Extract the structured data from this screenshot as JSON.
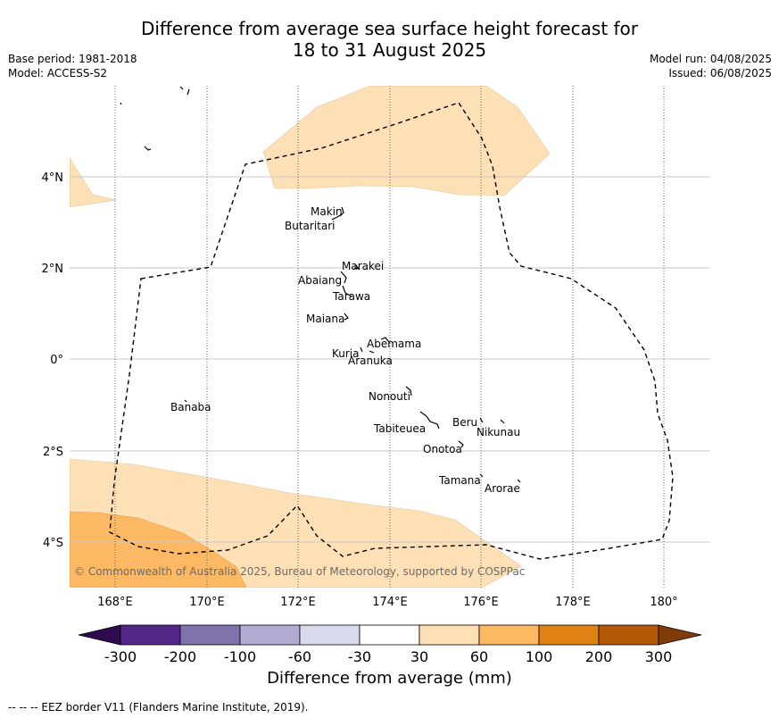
{
  "header": {
    "title_line1": "Difference from average sea surface height forecast for",
    "title_line2": "18 to 31 August 2025",
    "base_period": "Base period: 1981-2018",
    "model": "Model: ACCESS-S2",
    "model_run": "Model run: 04/08/2025",
    "issued": "Issued: 06/08/2025"
  },
  "map": {
    "lon_ticks": [
      "168°E",
      "170°E",
      "172°E",
      "174°E",
      "176°E",
      "178°E",
      "180°"
    ],
    "lat_ticks": [
      "4°N",
      "2°N",
      "0°",
      "2°S",
      "4°S"
    ],
    "places": [
      "Makin",
      "Butaritari",
      "Marakei",
      "Abaiang",
      "Tarawa",
      "Maiana",
      "Abemama",
      "Kuria",
      "Aranuka",
      "Banaba",
      "Nonouti",
      "Tabiteuea",
      "Beru",
      "Nikunau",
      "Onotoa",
      "Tamana",
      "Arorae"
    ],
    "copyright": "© Commonwealth of Australia 2025, Bureau of Meteorology, supported by COSPPac"
  },
  "colorbar": {
    "labels": [
      "-300",
      "-200",
      "-100",
      "-60",
      "-30",
      "30",
      "60",
      "100",
      "200",
      "300"
    ],
    "colors": [
      "#2d0b4e",
      "#542688",
      "#8073ac",
      "#b2abd2",
      "#d8daeb",
      "#ffffff",
      "#fee0b6",
      "#fdb863",
      "#e08214",
      "#b35806",
      "#7f3b08"
    ],
    "title": "Difference from average (mm)"
  },
  "footer": {
    "eez_note": "--  --  -- EEZ border V11 (Flanders Marine Institute, 2019)."
  }
}
